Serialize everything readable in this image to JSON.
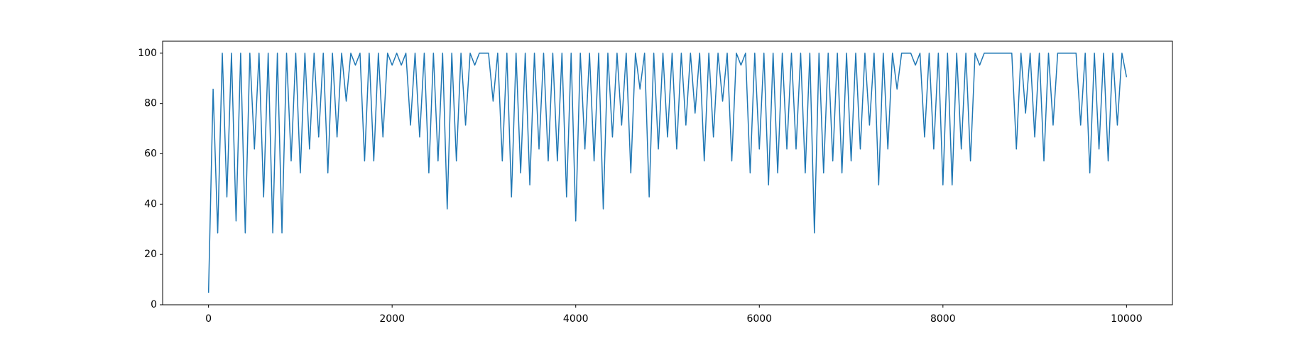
{
  "chart_data": {
    "type": "line",
    "x": [
      0,
      50,
      100,
      150,
      200,
      250,
      300,
      350,
      400,
      450,
      500,
      550,
      600,
      650,
      700,
      750,
      800,
      850,
      900,
      950,
      1000,
      1050,
      1100,
      1150,
      1200,
      1250,
      1300,
      1350,
      1400,
      1450,
      1500,
      1550,
      1600,
      1650,
      1700,
      1750,
      1800,
      1850,
      1900,
      1950,
      2000,
      2050,
      2100,
      2150,
      2200,
      2250,
      2300,
      2350,
      2400,
      2450,
      2500,
      2550,
      2600,
      2650,
      2700,
      2750,
      2800,
      2850,
      2900,
      2950,
      3000,
      3050,
      3100,
      3150,
      3200,
      3250,
      3300,
      3350,
      3400,
      3450,
      3500,
      3550,
      3600,
      3650,
      3700,
      3750,
      3800,
      3850,
      3900,
      3950,
      4000,
      4050,
      4100,
      4150,
      4200,
      4250,
      4300,
      4350,
      4400,
      4450,
      4500,
      4550,
      4600,
      4650,
      4700,
      4750,
      4800,
      4850,
      4900,
      4950,
      5000,
      5050,
      5100,
      5150,
      5200,
      5250,
      5300,
      5350,
      5400,
      5450,
      5500,
      5550,
      5600,
      5650,
      5700,
      5750,
      5800,
      5850,
      5900,
      5950,
      6000,
      6050,
      6100,
      6150,
      6200,
      6250,
      6300,
      6350,
      6400,
      6450,
      6500,
      6550,
      6600,
      6650,
      6700,
      6750,
      6800,
      6850,
      6900,
      6950,
      7000,
      7050,
      7100,
      7150,
      7200,
      7250,
      7300,
      7350,
      7400,
      7450,
      7500,
      7550,
      7600,
      7650,
      7700,
      7750,
      7800,
      7850,
      7900,
      7950,
      8000,
      8050,
      8100,
      8150,
      8200,
      8250,
      8300,
      8350,
      8400,
      8450,
      8500,
      8550,
      8600,
      8650,
      8700,
      8750,
      8800,
      8850,
      8900,
      8950,
      9000,
      9050,
      9100,
      9150,
      9200,
      9250,
      9300,
      9350,
      9400,
      9450,
      9500,
      9550,
      9600,
      9650,
      9700,
      9750,
      9800,
      9850,
      9900,
      9950,
      10000
    ],
    "series": [
      {
        "color": "#1f77b4",
        "values": [
          4.76,
          85.71,
          28.57,
          100,
          42.86,
          100,
          33.33,
          100,
          28.57,
          100,
          61.9,
          100,
          42.86,
          100,
          28.57,
          100,
          28.57,
          100,
          57.14,
          100,
          52.38,
          100,
          61.9,
          100,
          66.67,
          100,
          52.38,
          100,
          66.67,
          100,
          80.95,
          100,
          95.24,
          100,
          57.14,
          100,
          57.14,
          100,
          66.67,
          100,
          95.24,
          100,
          95.24,
          100,
          71.43,
          100,
          66.67,
          100,
          52.38,
          100,
          57.14,
          100,
          38.1,
          100,
          57.14,
          100,
          71.43,
          100,
          95.24,
          100,
          100,
          100,
          80.95,
          100,
          57.14,
          100,
          42.86,
          100,
          52.38,
          100,
          47.62,
          100,
          61.9,
          100,
          57.14,
          100,
          57.14,
          100,
          42.86,
          100,
          33.33,
          100,
          61.9,
          100,
          57.14,
          100,
          38.1,
          100,
          66.67,
          100,
          71.43,
          100,
          52.38,
          100,
          85.71,
          100,
          42.86,
          100,
          61.9,
          100,
          66.67,
          100,
          61.9,
          100,
          71.43,
          100,
          76.19,
          100,
          57.14,
          100,
          66.67,
          100,
          80.95,
          100,
          57.14,
          100,
          95.24,
          100,
          52.38,
          100,
          61.9,
          100,
          47.62,
          100,
          52.38,
          100,
          61.9,
          100,
          61.9,
          100,
          52.38,
          100,
          28.57,
          100,
          52.38,
          100,
          57.14,
          100,
          52.38,
          100,
          57.14,
          100,
          61.9,
          100,
          71.43,
          100,
          47.62,
          100,
          61.9,
          100,
          85.71,
          100,
          100,
          100,
          95.24,
          100,
          66.67,
          100,
          61.9,
          100,
          47.62,
          100,
          47.62,
          100,
          61.9,
          100,
          57.14,
          100,
          95.24,
          100,
          100,
          100,
          100,
          100,
          100,
          100,
          61.9,
          100,
          76.19,
          100,
          66.67,
          100,
          57.14,
          100,
          71.43,
          100,
          100,
          100,
          100,
          100,
          71.43,
          100,
          52.38,
          100,
          61.9,
          100,
          57.14,
          100,
          71.43,
          100,
          90.48
        ]
      }
    ],
    "xlim": [
      -500,
      10500
    ],
    "ylim": [
      0,
      104.76
    ],
    "xticks": [
      0,
      2000,
      4000,
      6000,
      8000,
      10000
    ],
    "yticks": [
      0,
      20,
      40,
      60,
      80,
      100
    ],
    "grid": false
  }
}
